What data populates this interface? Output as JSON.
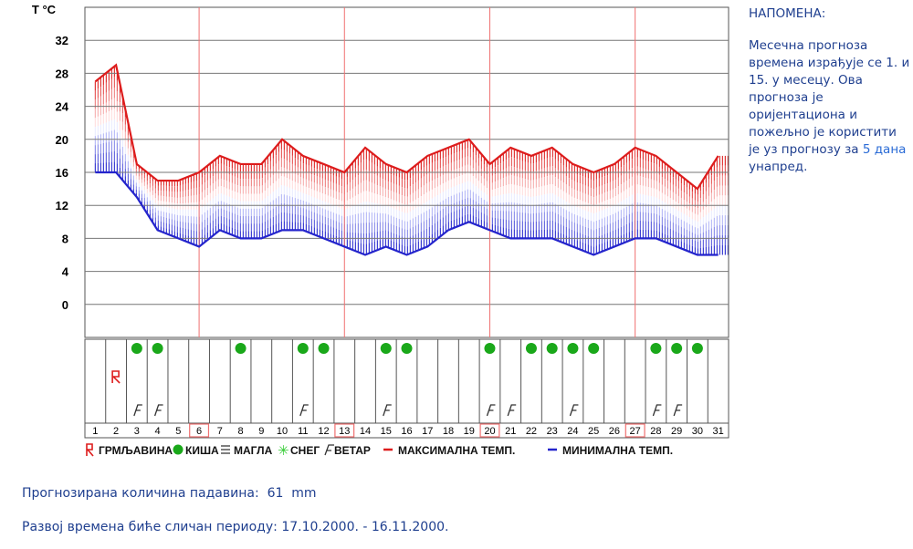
{
  "note": {
    "title": "НАПОМЕНА:",
    "text_before": "Месечна прогноза времена израђује се 1. и 15. у месецу. Ова прогноза је оријентациона и пожељно је користити је уз прогнозу за ",
    "link": "5 дана",
    "text_after": " унапред."
  },
  "precipitation": {
    "label": "Прогнозирана количина падавина:",
    "value": "61",
    "unit": "mm"
  },
  "analog": {
    "label": "Развој времена биће сличан периоду:",
    "value": "17.10.2000. - 16.11.2000."
  },
  "legend": {
    "thunder": "ГРМЉАВИНА",
    "rain": "КИША",
    "fog": "МАГЛА",
    "snow": "СНЕГ",
    "wind": "ВЕТАР",
    "max": "МАКСИМАЛНА ТЕМП.",
    "min": "МИНИМАЛНА ТЕМП."
  },
  "colors": {
    "max": "#dd1c1c",
    "min": "#2424cc",
    "rain": "#1aa81a",
    "grid_red": "#f07070",
    "text": "#1f3f8f",
    "link": "#2a6bd6"
  },
  "chart_data": {
    "type": "line",
    "ylabel": "T °C",
    "ylim": [
      -4,
      36
    ],
    "yticks": [
      0,
      4,
      8,
      12,
      16,
      20,
      24,
      28,
      32
    ],
    "x": [
      1,
      2,
      3,
      4,
      5,
      6,
      7,
      8,
      9,
      10,
      11,
      12,
      13,
      14,
      15,
      16,
      17,
      18,
      19,
      20,
      21,
      22,
      23,
      24,
      25,
      26,
      27,
      28,
      29,
      30,
      31
    ],
    "series": [
      {
        "name": "МАКСИМАЛНА ТЕМП.",
        "values": [
          27,
          29,
          17,
          15,
          15,
          16,
          18,
          17,
          17,
          20,
          18,
          17,
          16,
          19,
          17,
          16,
          18,
          19,
          20,
          17,
          19,
          18,
          19,
          17,
          16,
          17,
          19,
          18,
          16,
          14,
          18
        ]
      },
      {
        "name": "МИНИМАЛНА ТЕМП.",
        "values": [
          16,
          16,
          13,
          9,
          8,
          7,
          9,
          8,
          8,
          9,
          9,
          8,
          7,
          6,
          7,
          6,
          7,
          9,
          10,
          9,
          8,
          8,
          8,
          7,
          6,
          7,
          8,
          8,
          7,
          6,
          6
        ]
      }
    ],
    "rain_days": [
      3,
      4,
      8,
      11,
      12,
      15,
      16,
      20,
      22,
      23,
      24,
      25,
      28,
      29,
      30
    ],
    "wind_days": [
      3,
      4,
      11,
      15,
      20,
      21,
      24,
      28,
      29
    ],
    "thunder_days": [
      2
    ],
    "marked_days": [
      6,
      13,
      20,
      27
    ]
  }
}
